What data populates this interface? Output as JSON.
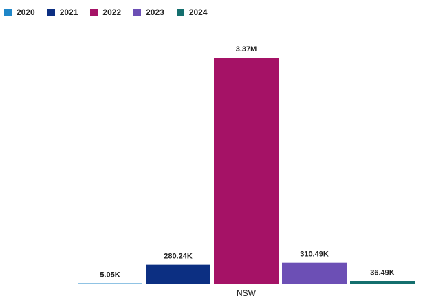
{
  "chart_data": {
    "type": "bar",
    "categories": [
      "NSW"
    ],
    "series": [
      {
        "name": "2020",
        "color": "#1f86c8",
        "values": [
          5050
        ],
        "label": "5.05K"
      },
      {
        "name": "2021",
        "color": "#0c2f82",
        "values": [
          280240
        ],
        "label": "280.24K"
      },
      {
        "name": "2022",
        "color": "#a51266",
        "values": [
          3370000
        ],
        "label": "3.37M"
      },
      {
        "name": "2023",
        "color": "#6c4fb5",
        "values": [
          310490
        ],
        "label": "310.49K"
      },
      {
        "name": "2024",
        "color": "#146f6e",
        "values": [
          36490
        ],
        "label": "36.49K"
      }
    ],
    "ylim": [
      0,
      3370000
    ],
    "grid": false,
    "legend_position": "top-left"
  }
}
